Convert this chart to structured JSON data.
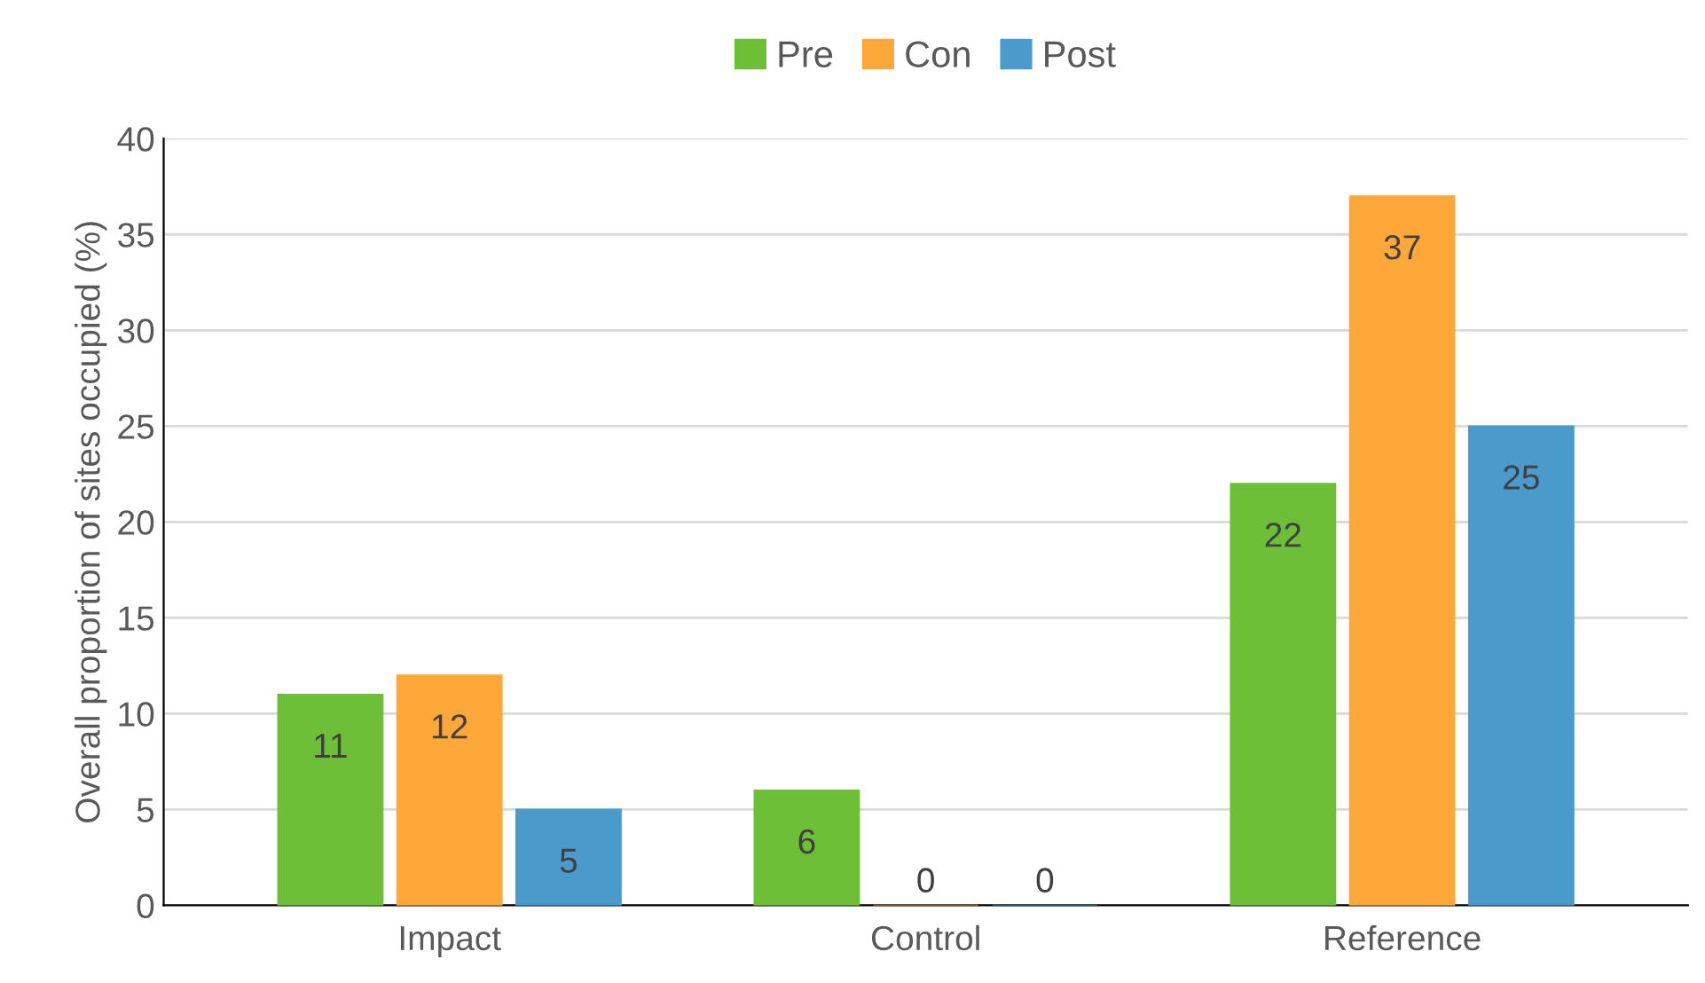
{
  "chart_data": {
    "type": "bar",
    "ylabel": "Overall proportion of sites occupied (%)",
    "categories": [
      "Impact",
      "Control",
      "Reference"
    ],
    "series": [
      {
        "name": "Pre",
        "color": "#6dbf38",
        "values": [
          11,
          6,
          22
        ]
      },
      {
        "name": "Con",
        "color": "#ffa83a",
        "values": [
          12,
          0,
          37
        ]
      },
      {
        "name": "Post",
        "color": "#4a9acb",
        "values": [
          5,
          0,
          25
        ]
      }
    ],
    "ylim": [
      0,
      40
    ],
    "yticks": [
      0,
      5,
      10,
      15,
      20,
      25,
      30,
      35,
      40
    ],
    "grid": "y",
    "legend": "top",
    "data_labels": true
  }
}
